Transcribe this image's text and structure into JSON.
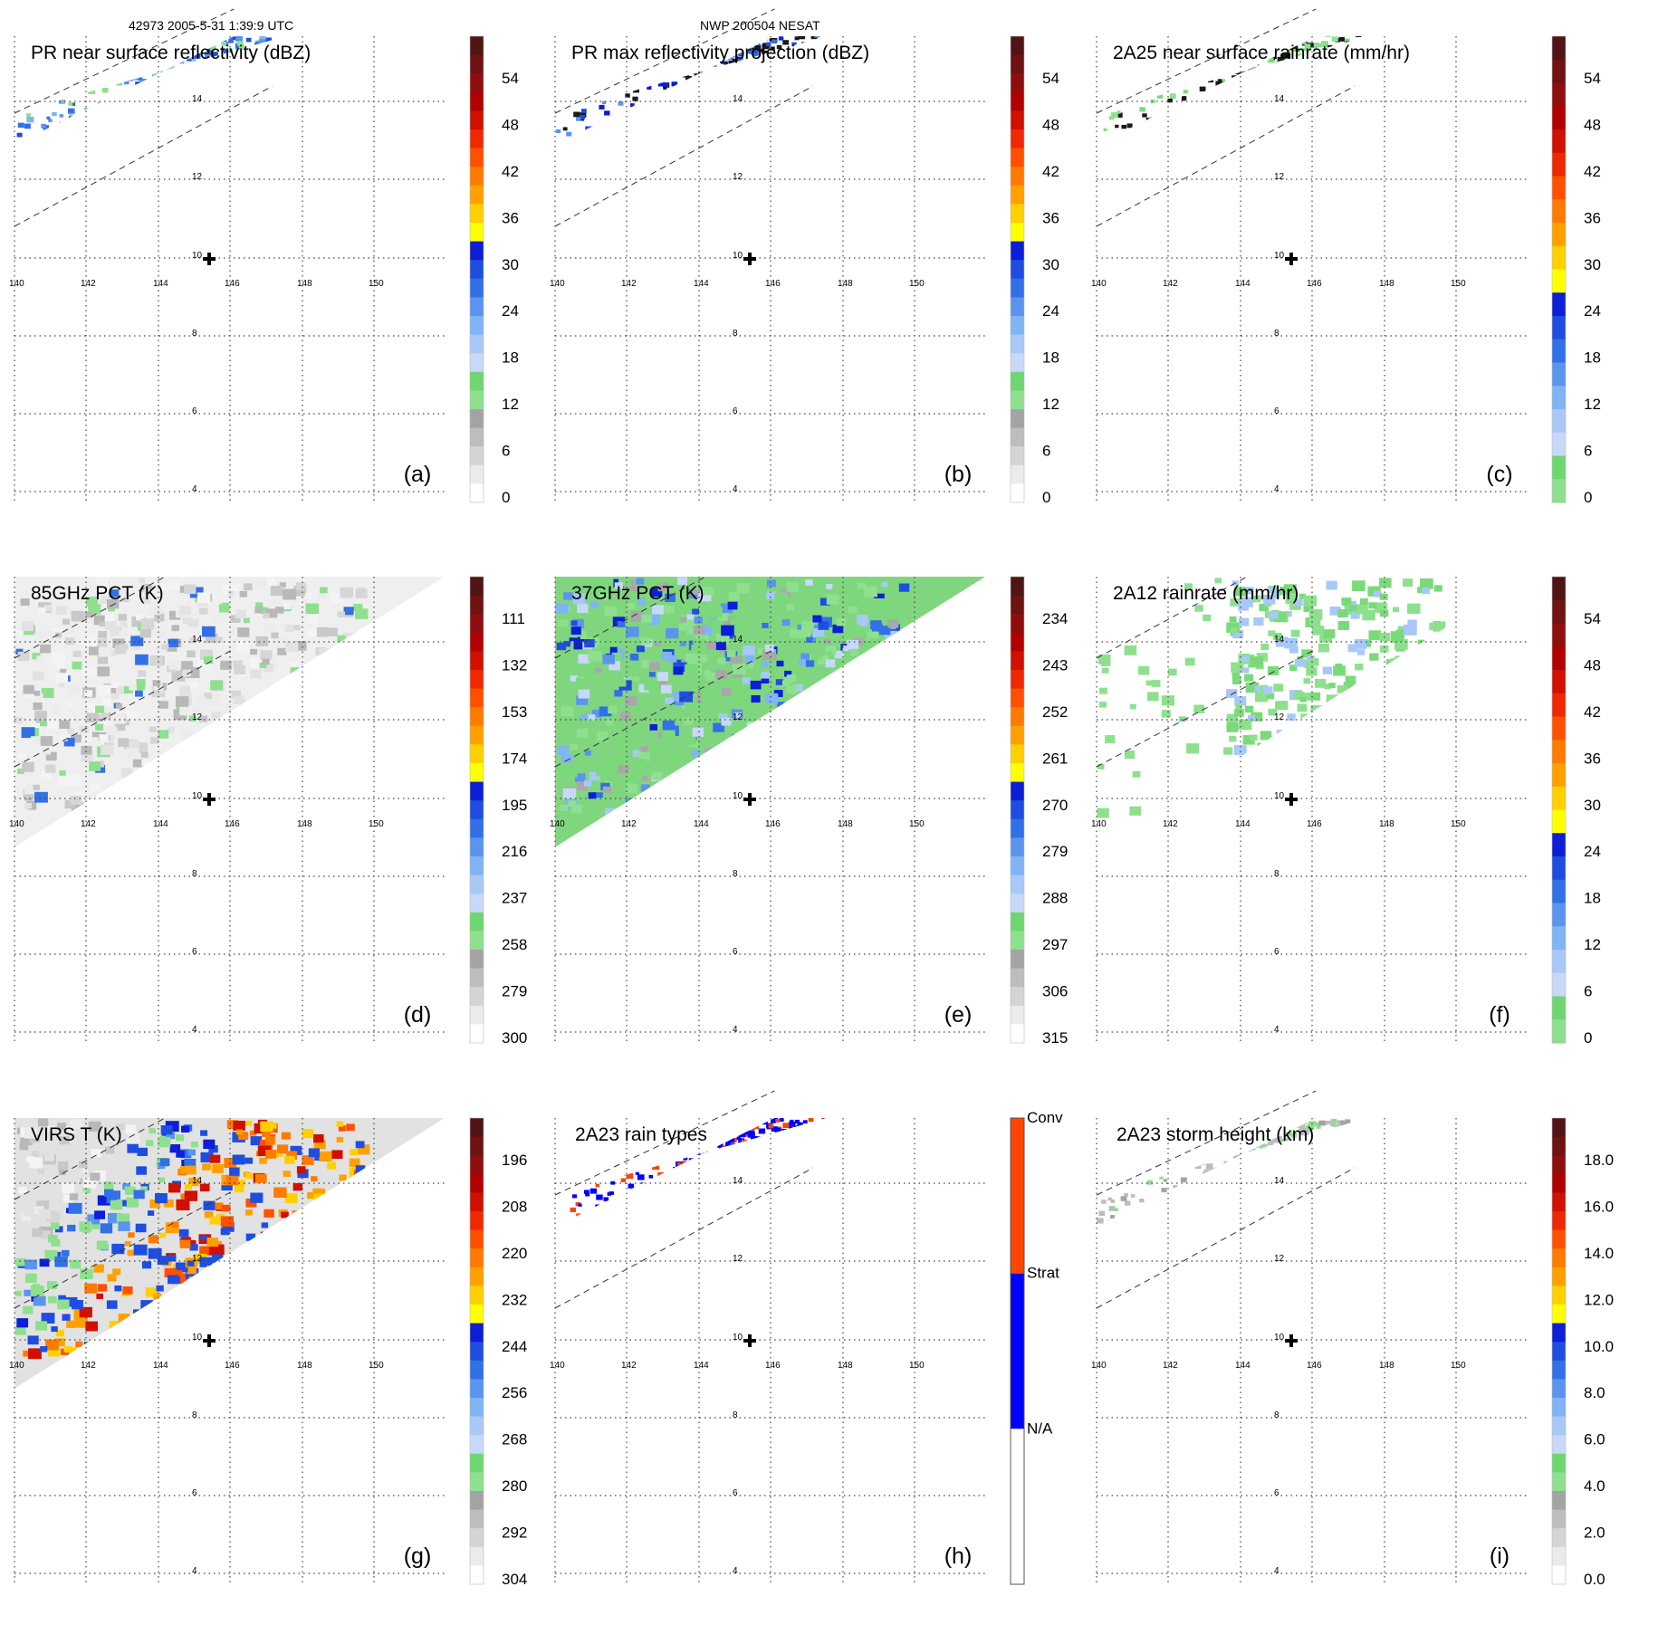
{
  "header": {
    "left": "42973 2005-5-31 1:39:9 UTC",
    "center": "NWP 200504 NESAT"
  },
  "chart_data": [
    {
      "id": "a",
      "type": "heatmap",
      "title": "PR near surface reflectivity (dBZ)",
      "panel_label": "(a)",
      "xticks": [
        "140",
        "142",
        "144",
        "146",
        "148",
        "150"
      ],
      "yticks": [
        "14",
        "12",
        "10",
        "8",
        "6",
        "4"
      ],
      "colorbar": {
        "ticks": [
          "54",
          "48",
          "42",
          "36",
          "30",
          "24",
          "18",
          "12",
          "6",
          "0"
        ],
        "scheme": "dbz"
      },
      "shape": "pr"
    },
    {
      "id": "b",
      "type": "heatmap",
      "title": "PR max reflectivity projection (dBZ)",
      "panel_label": "(b)",
      "xticks": [
        "140",
        "142",
        "144",
        "146",
        "148",
        "150"
      ],
      "yticks": [
        "14",
        "12",
        "10",
        "8",
        "6",
        "4"
      ],
      "colorbar": {
        "ticks": [
          "54",
          "48",
          "42",
          "36",
          "30",
          "24",
          "18",
          "12",
          "6",
          "0"
        ],
        "scheme": "dbz"
      },
      "shape": "pr"
    },
    {
      "id": "c",
      "type": "heatmap",
      "title": "2A25 near surface rainrate (mm/hr)",
      "panel_label": "(c)",
      "xticks": [
        "140",
        "142",
        "144",
        "146",
        "148",
        "150"
      ],
      "yticks": [
        "14",
        "12",
        "10",
        "8",
        "6",
        "4"
      ],
      "colorbar": {
        "ticks": [
          "54",
          "48",
          "42",
          "36",
          "30",
          "24",
          "18",
          "12",
          "6",
          "0"
        ],
        "scheme": "rain"
      },
      "shape": "pr"
    },
    {
      "id": "d",
      "type": "heatmap",
      "title": "85GHz PCT (K)",
      "panel_label": "(d)",
      "xticks": [
        "140",
        "142",
        "144",
        "146",
        "148",
        "150"
      ],
      "yticks": [
        "14",
        "12",
        "10",
        "8",
        "6",
        "4"
      ],
      "colorbar": {
        "ticks": [
          "111",
          "132",
          "153",
          "174",
          "195",
          "216",
          "237",
          "258",
          "279",
          "300"
        ],
        "scheme": "dbz"
      },
      "shape": "tmi"
    },
    {
      "id": "e",
      "type": "heatmap",
      "title": "37GHz PCT (K)",
      "panel_label": "(e)",
      "xticks": [
        "140",
        "142",
        "144",
        "146",
        "148",
        "150"
      ],
      "yticks": [
        "14",
        "12",
        "10",
        "8",
        "6",
        "4"
      ],
      "colorbar": {
        "ticks": [
          "234",
          "243",
          "252",
          "261",
          "270",
          "279",
          "288",
          "297",
          "306",
          "315"
        ],
        "scheme": "dbz"
      },
      "shape": "tmi"
    },
    {
      "id": "f",
      "type": "heatmap",
      "title": "2A12 rainrate (mm/hr)",
      "panel_label": "(f)",
      "xticks": [
        "140",
        "142",
        "144",
        "146",
        "148",
        "150"
      ],
      "yticks": [
        "14",
        "12",
        "10",
        "8",
        "6",
        "4"
      ],
      "colorbar": {
        "ticks": [
          "54",
          "48",
          "42",
          "36",
          "30",
          "24",
          "18",
          "12",
          "6",
          "0"
        ],
        "scheme": "rain"
      },
      "shape": "tmi"
    },
    {
      "id": "g",
      "type": "heatmap",
      "title": "VIRS T (K)",
      "panel_label": "(g)",
      "xticks": [
        "140",
        "142",
        "144",
        "146",
        "148",
        "150"
      ],
      "yticks": [
        "14",
        "12",
        "10",
        "8",
        "6",
        "4"
      ],
      "colorbar": {
        "ticks": [
          "196",
          "208",
          "220",
          "232",
          "244",
          "256",
          "268",
          "280",
          "292",
          "304"
        ],
        "scheme": "dbz"
      },
      "shape": "virs"
    },
    {
      "id": "h",
      "type": "heatmap",
      "title": "2A23 rain types",
      "panel_label": "(h)",
      "xticks": [
        "140",
        "142",
        "144",
        "146",
        "148",
        "150"
      ],
      "yticks": [
        "14",
        "12",
        "10",
        "8",
        "6",
        "4"
      ],
      "colorbar": {
        "ticks": [
          "Conv",
          "Strat",
          "N/A"
        ],
        "scheme": "types"
      },
      "shape": "pr"
    },
    {
      "id": "i",
      "type": "heatmap",
      "title": "2A23 storm height (km)",
      "panel_label": "(i)",
      "xticks": [
        "140",
        "142",
        "144",
        "146",
        "148",
        "150"
      ],
      "yticks": [
        "14",
        "12",
        "10",
        "8",
        "6",
        "4"
      ],
      "colorbar": {
        "ticks": [
          "18.0",
          "16.0",
          "14.0",
          "12.0",
          "10.0",
          "8.0",
          "6.0",
          "4.0",
          "2.0",
          "0.0"
        ],
        "scheme": "height"
      },
      "shape": "pr"
    }
  ],
  "colors": {
    "dbz": [
      "#ffffff",
      "#ebebeb",
      "#d4d4d4",
      "#bdbdbd",
      "#a3a3a3",
      "#8ee08e",
      "#6ed66e",
      "#c8d8f8",
      "#a8c8f8",
      "#80b4f4",
      "#5a94ee",
      "#3270e6",
      "#1e4ee0",
      "#0c1ed6",
      "#ffff00",
      "#ffd000",
      "#ffa000",
      "#ff7a00",
      "#ff5000",
      "#f02800",
      "#d01000",
      "#b00000",
      "#8e0e0e",
      "#6e1212",
      "#501414"
    ],
    "rain": [
      "#8ee08e",
      "#6ed66e",
      "#c8d8f8",
      "#a8c8f8",
      "#80b4f4",
      "#5a94ee",
      "#3270e6",
      "#1e4ee0",
      "#0c1ed6",
      "#ffff00",
      "#ffd000",
      "#ffa000",
      "#ff7a00",
      "#ff5000",
      "#f02800",
      "#d01000",
      "#b00000",
      "#8e0e0e",
      "#6e1212",
      "#501414"
    ],
    "height": [
      "#ffffff",
      "#ebebeb",
      "#d4d4d4",
      "#bdbdbd",
      "#a3a3a3",
      "#8ee08e",
      "#6ed66e",
      "#c8d8f8",
      "#a8c8f8",
      "#80b4f4",
      "#5a94ee",
      "#3270e6",
      "#1e4ee0",
      "#0c1ed6",
      "#ffff00",
      "#ffd000",
      "#ffa000",
      "#ff7a00",
      "#ff5000",
      "#f02800",
      "#d01000",
      "#b00000",
      "#8e0e0e",
      "#6e1212",
      "#501414"
    ],
    "types": [
      "#ffffff",
      "#0000ff",
      "#ff4500"
    ]
  }
}
